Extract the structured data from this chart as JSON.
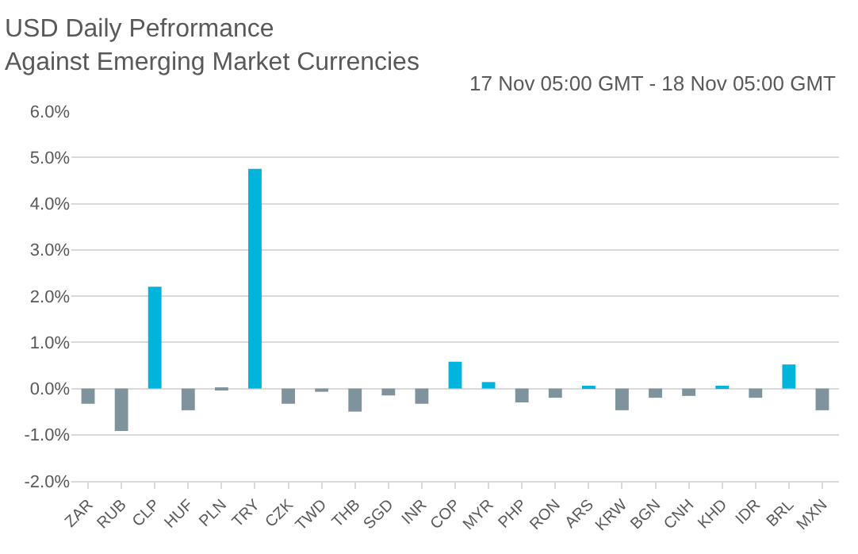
{
  "chart_data": {
    "type": "bar",
    "title": "USD Daily Pefrormance\nAgainst Emerging Market Currencies",
    "subtitle": "17 Nov 05:00 GMT - 18 Nov 05:00 GMT",
    "categories": [
      "ZAR",
      "RUB",
      "CLP",
      "HUF",
      "PLN",
      "TRY",
      "CZK",
      "TWD",
      "THB",
      "SGD",
      "INR",
      "COP",
      "MYR",
      "PHP",
      "RON",
      "ARS",
      "KRW",
      "BGN",
      "CNH",
      "KHD",
      "IDR",
      "BRL",
      "MXN"
    ],
    "values": [
      -0.33,
      -0.92,
      2.2,
      -0.47,
      -0.04,
      4.75,
      -0.33,
      -0.07,
      -0.5,
      -0.15,
      -0.33,
      0.58,
      0.14,
      -0.3,
      -0.2,
      0.04,
      -0.47,
      -0.2,
      -0.16,
      0.04,
      -0.2,
      0.52,
      -0.47
    ],
    "colors": [
      "#7f939c",
      "#7f939c",
      "#00b4dc",
      "#7f939c",
      "#7f939c",
      "#00b4dc",
      "#7f939c",
      "#7f939c",
      "#7f939c",
      "#7f939c",
      "#7f939c",
      "#00b4dc",
      "#00b4dc",
      "#7f939c",
      "#7f939c",
      "#00b4dc",
      "#7f939c",
      "#7f939c",
      "#7f939c",
      "#00b4dc",
      "#7f939c",
      "#00b4dc",
      "#7f939c"
    ],
    "ylim": [
      -2.0,
      6.0
    ],
    "yticks": [
      {
        "value": -2.0,
        "label": "-2.0%"
      },
      {
        "value": -1.0,
        "label": "-1.0%"
      },
      {
        "value": 0.0,
        "label": "0.0%"
      },
      {
        "value": 1.0,
        "label": "1.0%"
      },
      {
        "value": 2.0,
        "label": "2.0%"
      },
      {
        "value": 3.0,
        "label": "3.0%"
      },
      {
        "value": 4.0,
        "label": "4.0%"
      },
      {
        "value": 5.0,
        "label": "5.0%"
      },
      {
        "value": 6.0,
        "label": "6.0%"
      }
    ],
    "grid": "y"
  }
}
